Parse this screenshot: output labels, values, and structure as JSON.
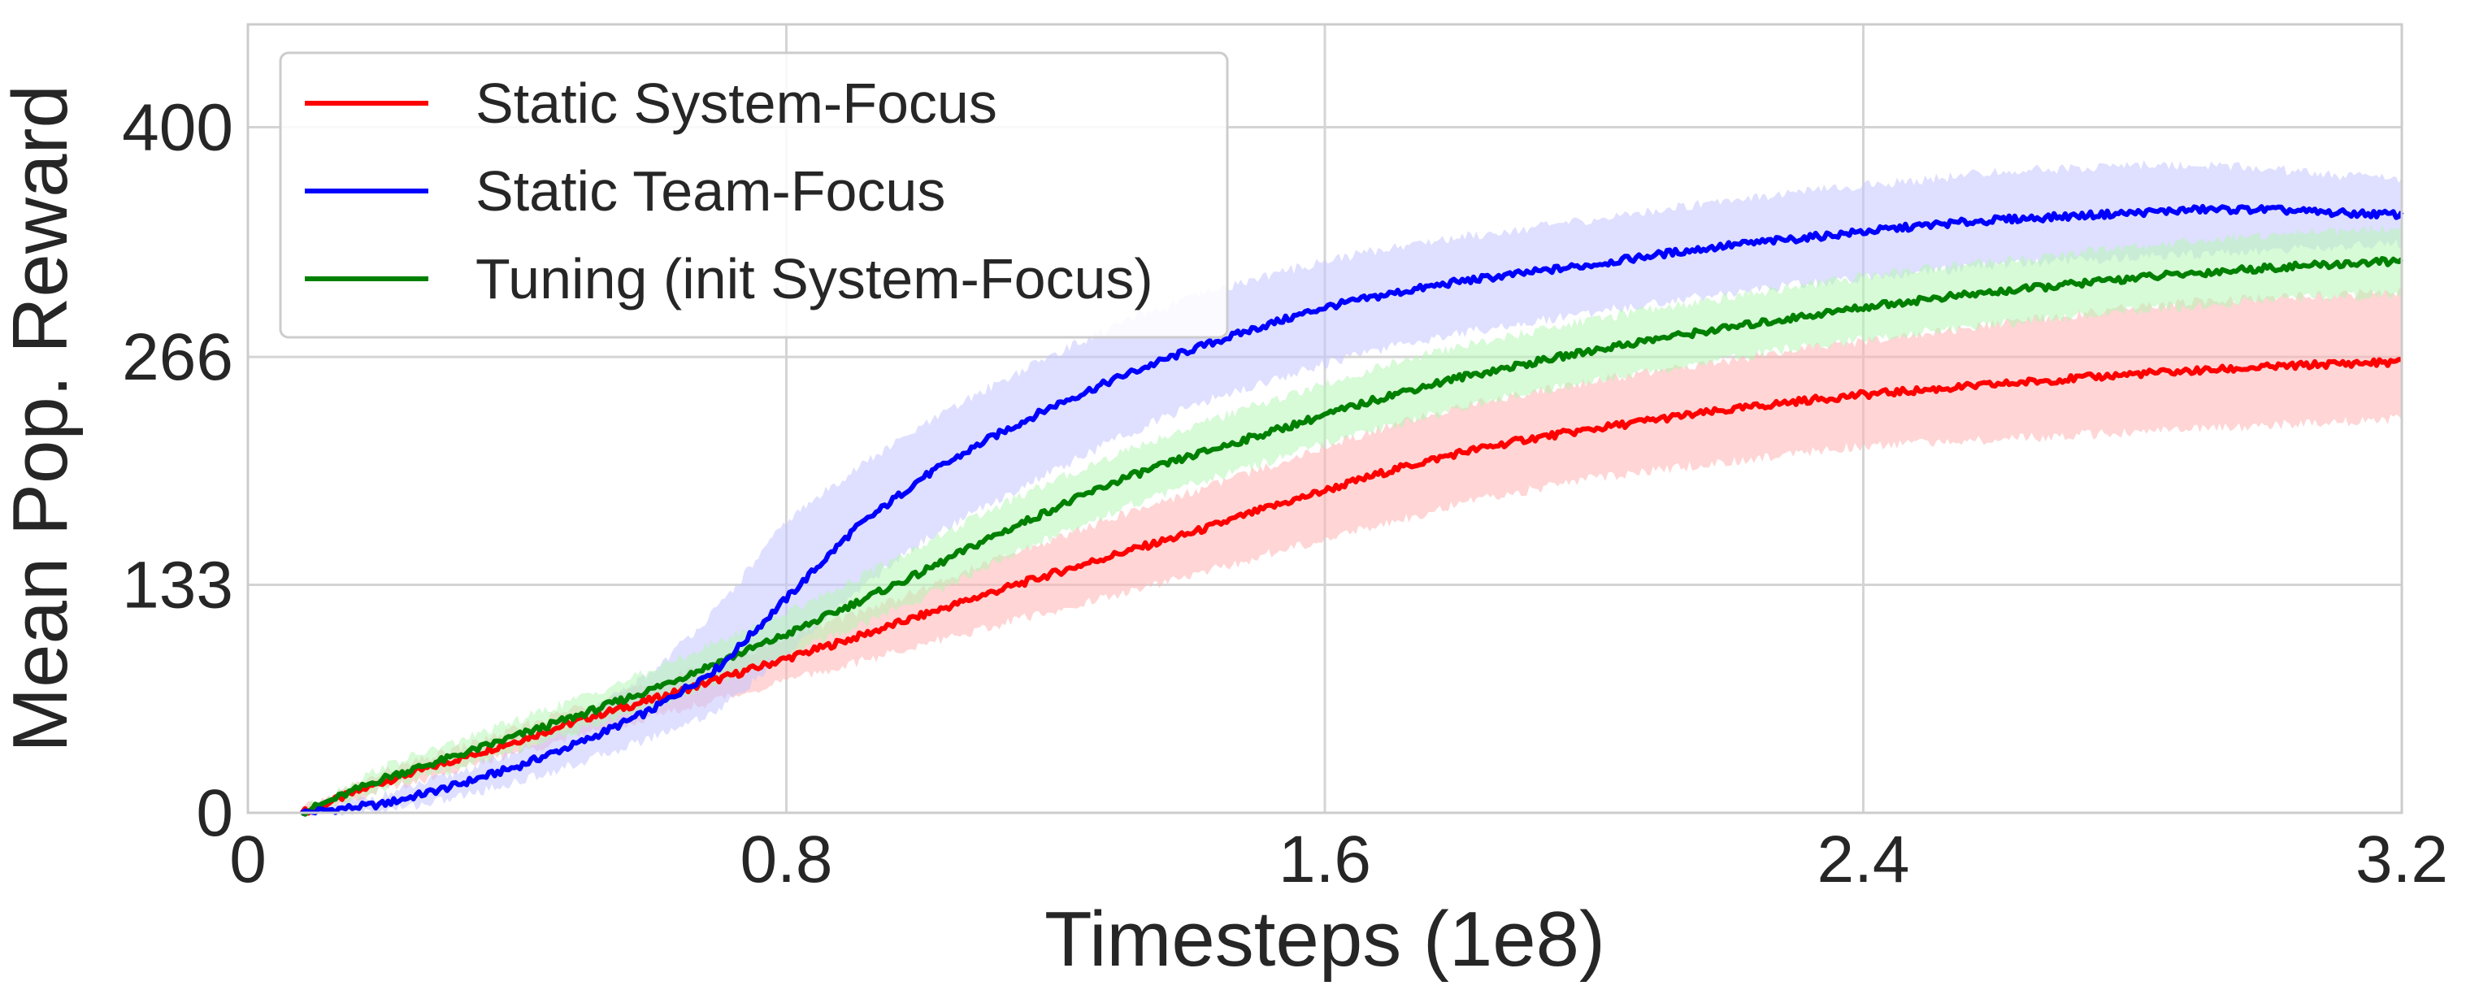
{
  "chart_data": {
    "type": "line",
    "xlabel": "Timesteps (1e8)",
    "ylabel": "Mean Pop. Reward",
    "xlim": [
      0,
      3.2
    ],
    "ylim": [
      0,
      460
    ],
    "x_ticks": [
      "0",
      "0.8",
      "1.6",
      "2.4",
      "3.2"
    ],
    "x_tick_values": [
      0,
      0.8,
      1.6,
      2.4,
      3.2
    ],
    "y_ticks": [
      "0",
      "133",
      "266",
      "400"
    ],
    "y_tick_values": [
      0,
      133,
      266,
      400
    ],
    "grid": true,
    "legend_position": "top-left",
    "x": [
      0.08,
      0.2,
      0.3,
      0.4,
      0.5,
      0.6,
      0.7,
      0.8,
      0.9,
      1.0,
      1.1,
      1.2,
      1.3,
      1.4,
      1.5,
      1.6,
      1.7,
      1.8,
      1.9,
      2.0,
      2.1,
      2.2,
      2.3,
      2.4,
      2.5,
      2.6,
      2.7,
      2.8,
      2.9,
      3.0,
      3.1,
      3.2
    ],
    "series": [
      {
        "name": "Static System-Focus",
        "color": "#ff0000",
        "band_color": "#ffb3b3",
        "values": [
          0,
          18,
          30,
          42,
          55,
          66,
          78,
          90,
          102,
          115,
          128,
          140,
          152,
          163,
          176,
          188,
          200,
          210,
          218,
          224,
          230,
          235,
          240,
          244,
          247,
          250,
          253,
          256,
          258,
          260,
          262,
          263
        ],
        "lower": [
          0,
          13,
          24,
          35,
          46,
          56,
          66,
          77,
          87,
          98,
          108,
          118,
          128,
          138,
          149,
          160,
          170,
          180,
          188,
          195,
          200,
          205,
          210,
          214,
          216,
          218,
          220,
          222,
          224,
          226,
          228,
          230
        ],
        "upper": [
          2,
          23,
          36,
          49,
          63,
          75,
          88,
          102,
          116,
          130,
          146,
          160,
          174,
          187,
          200,
          214,
          226,
          237,
          245,
          252,
          258,
          264,
          270,
          275,
          280,
          285,
          290,
          295,
          298,
          300,
          302,
          304
        ]
      },
      {
        "name": "Static Team-Focus",
        "color": "#0000ff",
        "band_color": "#c4c4ff",
        "values": [
          0,
          5,
          15,
          27,
          42,
          60,
          85,
          125,
          165,
          195,
          218,
          238,
          255,
          270,
          283,
          295,
          303,
          310,
          315,
          320,
          326,
          331,
          335,
          339,
          343,
          346,
          348,
          350,
          352,
          352,
          350,
          349
        ],
        "lower": [
          0,
          1,
          8,
          18,
          30,
          44,
          60,
          92,
          128,
          158,
          180,
          200,
          220,
          237,
          250,
          262,
          272,
          280,
          286,
          292,
          298,
          303,
          308,
          312,
          316,
          320,
          322,
          324,
          326,
          328,
          330,
          332
        ],
        "upper": [
          1,
          10,
          22,
          36,
          56,
          82,
          120,
          170,
          200,
          225,
          248,
          268,
          286,
          300,
          312,
          322,
          330,
          336,
          341,
          346,
          352,
          358,
          362,
          366,
          370,
          374,
          376,
          378,
          378,
          376,
          372,
          370
        ]
      },
      {
        "name": "Tuning (init System-Focus)",
        "color": "#008000",
        "band_color": "#b7f5b7",
        "values": [
          0,
          20,
          32,
          45,
          58,
          72,
          88,
          104,
          122,
          140,
          160,
          178,
          195,
          208,
          220,
          232,
          244,
          254,
          262,
          270,
          277,
          283,
          289,
          295,
          300,
          304,
          308,
          312,
          315,
          318,
          320,
          322
        ],
        "lower": [
          0,
          14,
          25,
          37,
          49,
          62,
          76,
          92,
          108,
          125,
          144,
          162,
          178,
          191,
          203,
          215,
          226,
          236,
          245,
          252,
          259,
          265,
          271,
          276,
          281,
          285,
          289,
          293,
          296,
          299,
          301,
          303
        ],
        "upper": [
          2,
          27,
          40,
          54,
          68,
          83,
          100,
          117,
          136,
          156,
          176,
          194,
          211,
          225,
          238,
          250,
          262,
          272,
          280,
          288,
          295,
          301,
          307,
          313,
          318,
          322,
          326,
          330,
          334,
          337,
          339,
          341
        ]
      }
    ]
  }
}
